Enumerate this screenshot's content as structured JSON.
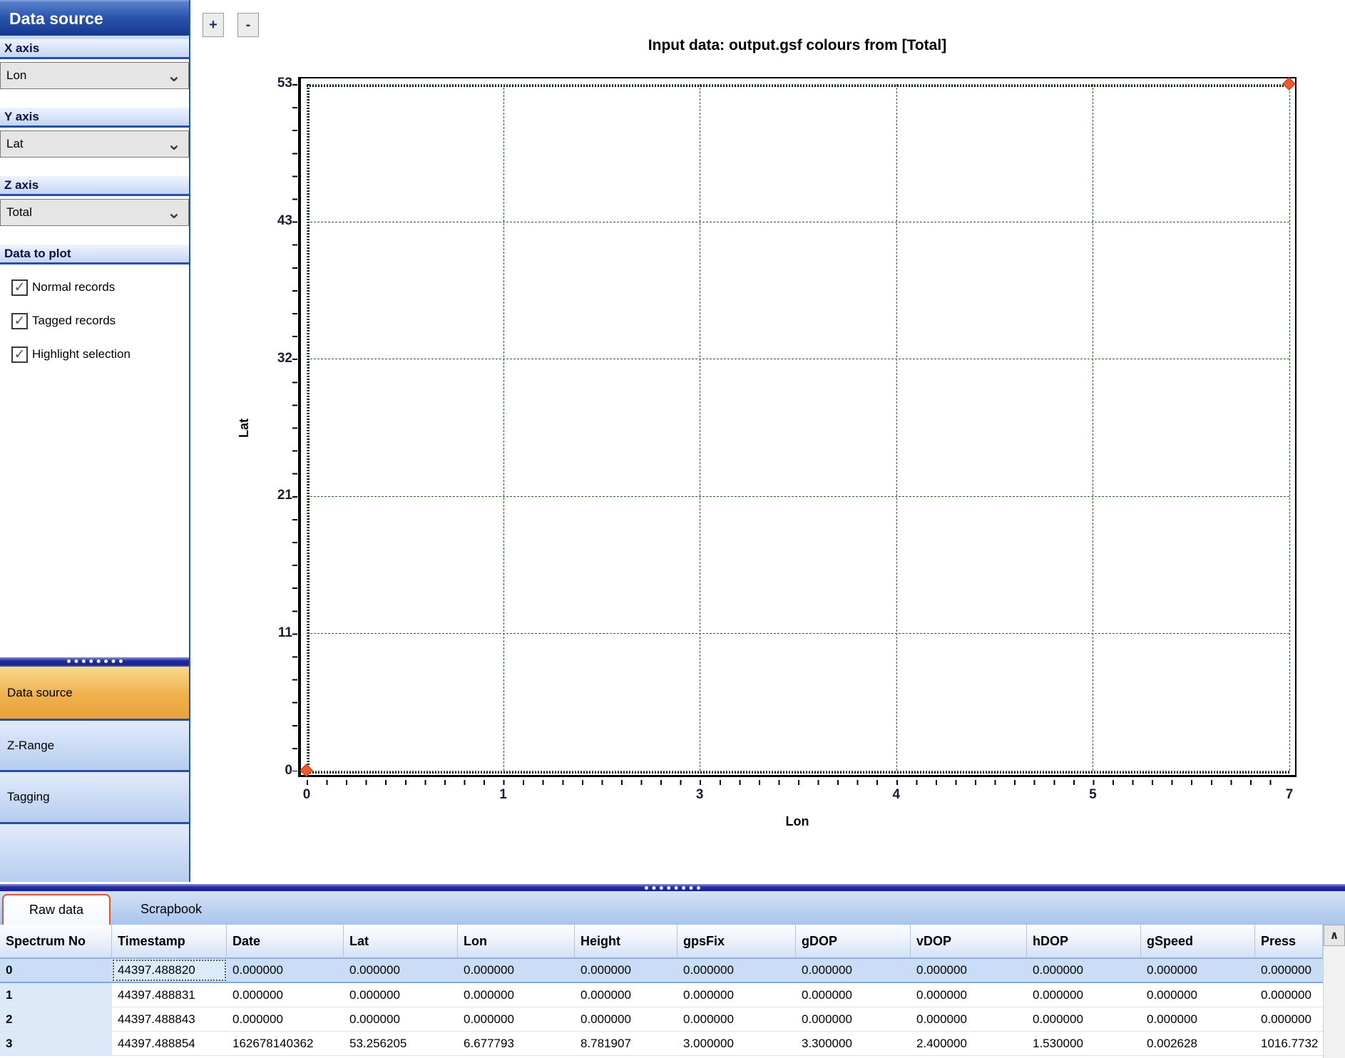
{
  "sidebar": {
    "title": "Data source",
    "sections": [
      {
        "label": "X axis",
        "value": "Lon"
      },
      {
        "label": "Y axis",
        "value": "Lat"
      },
      {
        "label": "Z axis",
        "value": "Total"
      }
    ],
    "data_to_plot": {
      "label": "Data to plot",
      "checkboxes": [
        {
          "label": "Normal records",
          "checked": true
        },
        {
          "label": "Tagged records",
          "checked": true
        },
        {
          "label": "Highlight selection",
          "checked": true
        }
      ]
    },
    "accordion": [
      {
        "label": "Data source",
        "active": true
      },
      {
        "label": "Z-Range",
        "active": false
      },
      {
        "label": "Tagging",
        "active": false
      }
    ]
  },
  "toolbar": {
    "zoom_in_label": "+",
    "zoom_out_label": "-"
  },
  "icons": {
    "chevron_down": "⌄",
    "checkmark": "✓",
    "scroll_up": "∧"
  },
  "chart_data": {
    "type": "scatter",
    "title": "Input data: output.gsf colours from [Total]",
    "xlabel": "Lon",
    "ylabel": "Lat",
    "x_ticks": [
      "0",
      "1",
      "3",
      "4",
      "5",
      "7"
    ],
    "y_ticks": [
      "53",
      "43",
      "32",
      "21",
      "11",
      "0"
    ],
    "xlim": [
      0,
      7
    ],
    "ylim": [
      0,
      53
    ],
    "grid": true,
    "grid_color": "#2d5f2d",
    "marker": "diamond",
    "marker_color": "#ee5a2b",
    "points": [
      {
        "x": 0,
        "y": 0
      },
      {
        "x": 7,
        "y": 53
      }
    ]
  },
  "bottom_panel": {
    "tabs": [
      {
        "label": "Raw data",
        "active": true
      },
      {
        "label": "Scrapbook",
        "active": false
      }
    ],
    "table": {
      "columns": [
        "Spectrum No",
        "Timestamp",
        "Date",
        "Lat",
        "Lon",
        "Height",
        "gpsFix",
        "gDOP",
        "vDOP",
        "hDOP",
        "gSpeed",
        "Press"
      ],
      "rows": [
        [
          "0",
          "44397.488820",
          "0.000000",
          "0.000000",
          "0.000000",
          "0.000000",
          "0.000000",
          "0.000000",
          "0.000000",
          "0.000000",
          "0.000000",
          "0.000000"
        ],
        [
          "1",
          "44397.488831",
          "0.000000",
          "0.000000",
          "0.000000",
          "0.000000",
          "0.000000",
          "0.000000",
          "0.000000",
          "0.000000",
          "0.000000",
          "0.000000"
        ],
        [
          "2",
          "44397.488843",
          "0.000000",
          "0.000000",
          "0.000000",
          "0.000000",
          "0.000000",
          "0.000000",
          "0.000000",
          "0.000000",
          "0.000000",
          "0.000000"
        ],
        [
          "3",
          "44397.488854",
          "162678140362",
          "53.256205",
          "6.677793",
          "8.781907",
          "3.000000",
          "3.300000",
          "2.400000",
          "1.530000",
          "0.002628",
          "1016.7732"
        ]
      ],
      "selected_row": 0,
      "focus_cell": {
        "row": 0,
        "col": 1
      }
    }
  }
}
